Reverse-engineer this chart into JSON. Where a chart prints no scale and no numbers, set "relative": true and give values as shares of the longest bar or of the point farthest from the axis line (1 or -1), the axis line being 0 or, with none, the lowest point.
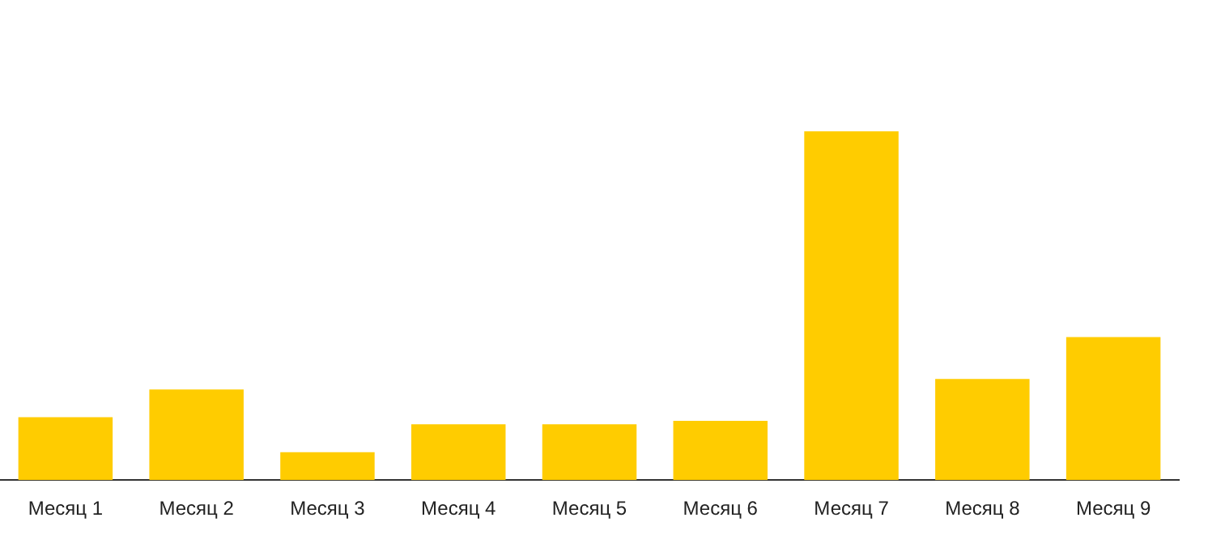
{
  "chart_data": {
    "type": "bar",
    "relative": true,
    "categories": [
      "Месяц 1",
      "Месяц 2",
      "Месяц 3",
      "Месяц 4",
      "Месяц 5",
      "Месяц 6",
      "Месяц 7",
      "Месяц 8",
      "Месяц 9"
    ],
    "values": [
      0.18,
      0.26,
      0.08,
      0.16,
      0.16,
      0.17,
      1,
      0.29,
      0.41
    ],
    "color": "#ffcc00"
  }
}
